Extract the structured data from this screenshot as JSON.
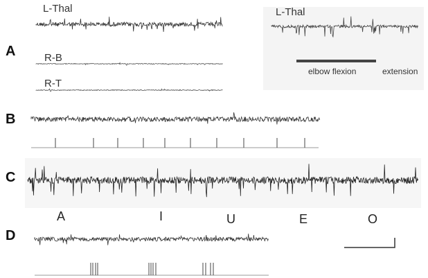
{
  "panels": [
    {
      "label": "A",
      "traces": [
        "L-Thal",
        "R-B",
        "R-T"
      ],
      "right_trace": "L-Thal",
      "annotations": [
        "elbow flexion",
        "extension"
      ]
    },
    {
      "label": "B"
    },
    {
      "label": "C",
      "vowels": [
        "A",
        "I",
        "U",
        "E",
        "O"
      ]
    },
    {
      "label": "D"
    }
  ]
}
